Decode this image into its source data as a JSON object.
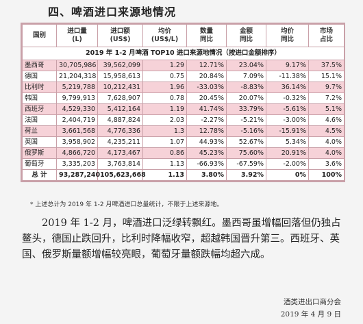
{
  "section_title": "四、啤酒进口来源地情况",
  "table": {
    "title": "2019 年 1-2 月啤酒 TOP10 进口来源地情况（按进口金额排序）",
    "headers": [
      "国别",
      "进口量\n(L)",
      "进口额\n(US$)",
      "均价\n(US$/L)",
      "数量\n同比",
      "金额\n同比",
      "均价\n同比",
      "市场\n占比"
    ],
    "rows": [
      {
        "country": "墨西哥",
        "volume": "30,705,986",
        "amount": "39,562,099",
        "price": "1.29",
        "vol_yoy": "12.71%",
        "amt_yoy": "23.04%",
        "price_yoy": "9.17%",
        "share": "37.5%",
        "highlight": true
      },
      {
        "country": "德国",
        "volume": "21,204,318",
        "amount": "15,958,613",
        "price": "0.75",
        "vol_yoy": "20.84%",
        "amt_yoy": "7.09%",
        "price_yoy": "-11.38%",
        "share": "15.1%",
        "highlight": false
      },
      {
        "country": "比利时",
        "volume": "5,219,788",
        "amount": "10,212,431",
        "price": "1.96",
        "vol_yoy": "-33.03%",
        "amt_yoy": "-8.83%",
        "price_yoy": "36.14%",
        "share": "9.7%",
        "highlight": true
      },
      {
        "country": "韩国",
        "volume": "9,799,913",
        "amount": "7,628,907",
        "price": "0.78",
        "vol_yoy": "20.45%",
        "amt_yoy": "20.07%",
        "price_yoy": "-0.32%",
        "share": "7.2%",
        "highlight": false
      },
      {
        "country": "西班牙",
        "volume": "4,529,330",
        "amount": "5,412,164",
        "price": "1.19",
        "vol_yoy": "41.74%",
        "amt_yoy": "33.79%",
        "price_yoy": "-5.61%",
        "share": "5.1%",
        "highlight": true
      },
      {
        "country": "法国",
        "volume": "2,404,719",
        "amount": "4,887,824",
        "price": "2.03",
        "vol_yoy": "-2.27%",
        "amt_yoy": "-5.21%",
        "price_yoy": "-3.00%",
        "share": "4.6%",
        "highlight": false
      },
      {
        "country": "荷兰",
        "volume": "3,661,568",
        "amount": "4,776,336",
        "price": "1.3",
        "vol_yoy": "12.78%",
        "amt_yoy": "-5.16%",
        "price_yoy": "-15.91%",
        "share": "4.5%",
        "highlight": true
      },
      {
        "country": "英国",
        "volume": "3,958,902",
        "amount": "4,235,211",
        "price": "1.07",
        "vol_yoy": "44.93%",
        "amt_yoy": "52.67%",
        "price_yoy": "5.34%",
        "share": "4.0%",
        "highlight": false
      },
      {
        "country": "俄罗斯",
        "volume": "4,866,720",
        "amount": "4,173,467",
        "price": "0.86",
        "vol_yoy": "45.23%",
        "amt_yoy": "75.60%",
        "price_yoy": "20.91%",
        "share": "4.0%",
        "highlight": true
      },
      {
        "country": "葡萄牙",
        "volume": "3,335,203",
        "amount": "3,763,814",
        "price": "1.13",
        "vol_yoy": "-66.93%",
        "amt_yoy": "-67.59%",
        "price_yoy": "-2.00%",
        "share": "3.6%",
        "highlight": false
      }
    ],
    "total": {
      "label": "总 计",
      "volume": "93,287,240",
      "amount": "105,623,668",
      "price": "1.13",
      "vol_yoy": "3.80%",
      "amt_yoy": "3.92%",
      "price_yoy": "0%",
      "share": "100%"
    }
  },
  "footnote": "* 上述总计为 2019 年 1-2 月啤酒进口总量统计，不限于上述来源地。",
  "paragraph": "2019 年 1-2 月，啤酒进口泛绿转飘红。墨西哥虽增幅回落但仍独占鳌头，德国止跌回升，比利时降幅收窄，超越韩国晋升第三。西班牙、英国、俄罗斯量额增幅较亮眼，葡萄牙量额跌幅均超六成。",
  "source": {
    "org": "酒类进出口商分会",
    "date": "2019 年 4 月 9 日"
  }
}
